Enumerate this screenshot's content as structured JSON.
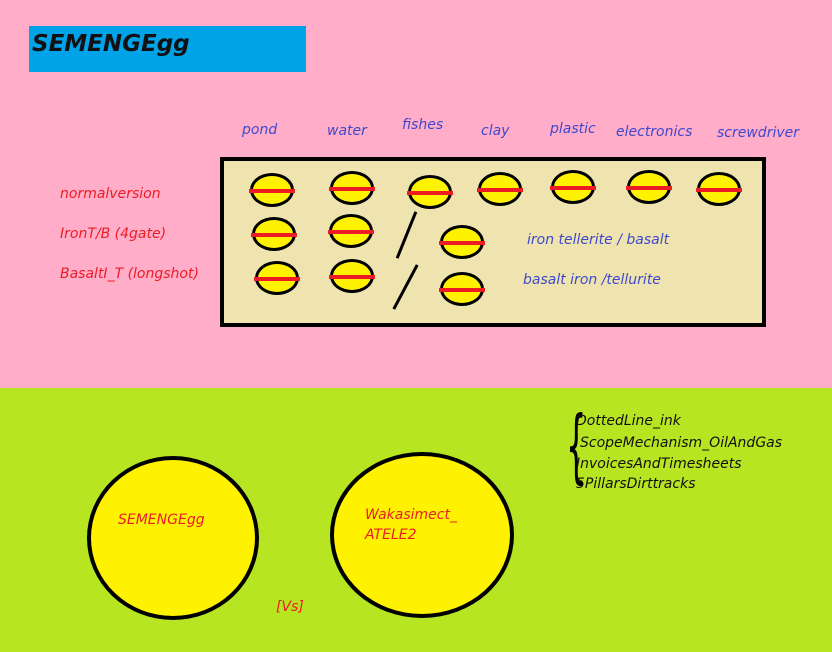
{
  "title": "SEMENGEgg",
  "columns": [
    "pond",
    "water",
    "fishes",
    "clay",
    "plastic",
    "electronics",
    "screwdriver"
  ],
  "rows": [
    {
      "label": "normalversion",
      "note": ""
    },
    {
      "label": "IronT/B (4gate)",
      "note": "iron tellerite / basalt"
    },
    {
      "label": "BasaltI_T (longshot)",
      "note": "basalt iron /tellurite"
    }
  ],
  "circles": [
    {
      "label": "SEMENGEgg"
    },
    {
      "label_line1": "Wakasimect_",
      "label_line2": "ATELE2"
    }
  ],
  "vs_label": "[Vs]",
  "list": [
    "DottedLine_ink",
    "ScopeMechanism_OilAndGas",
    "InvoicesAndTimesheets",
    "5PillarsDirttracks"
  ],
  "colors": {
    "pink": "#ffadc9",
    "lime": "#b8e522",
    "title_bg": "#00a2e8",
    "yellow": "#fff200",
    "red": "#ed1c24",
    "blue_text": "#3f48cc",
    "panel": "#efe4b0"
  }
}
